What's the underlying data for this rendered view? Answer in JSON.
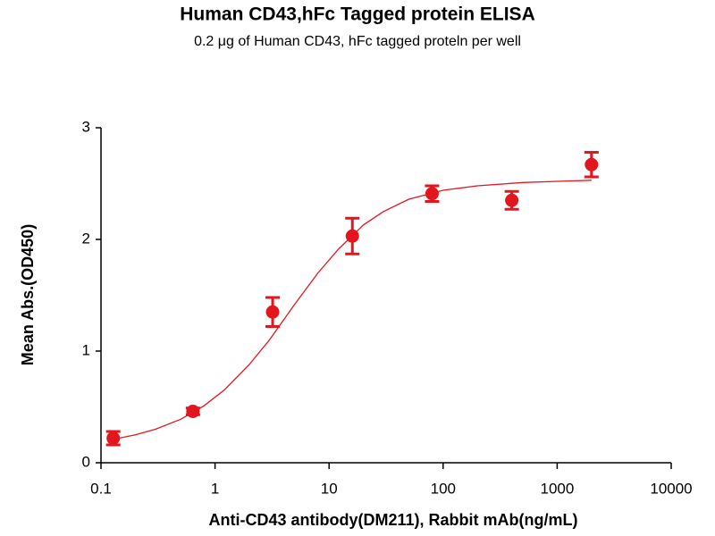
{
  "chart_data": {
    "type": "scatter",
    "title": "Human CD43,hFc Tagged protein ELISA",
    "subtitle": "0.2 μg of Human CD43, hFc tagged proteln per well",
    "x_label": "Anti-CD43 antibody(DM211), Rabbit mAb(ng/mL)",
    "y_label": "Mean Abs.(OD450)",
    "x_scale": "log",
    "xlim": [
      0.1,
      10000
    ],
    "xticks": [
      0.1,
      1,
      10,
      100,
      1000,
      10000
    ],
    "ylim": [
      0,
      3
    ],
    "yticks": [
      0,
      1,
      2,
      3
    ],
    "color": "#e3161e",
    "series": [
      {
        "x": [
          0.128,
          0.64,
          3.2,
          16,
          80,
          400,
          2000
        ],
        "values": [
          0.22,
          0.46,
          1.35,
          2.03,
          2.41,
          2.35,
          2.67
        ],
        "errors": [
          0.06,
          0.03,
          0.13,
          0.16,
          0.07,
          0.08,
          0.11
        ]
      }
    ],
    "fit": {
      "x": [
        0.128,
        0.2,
        0.3,
        0.5,
        0.8,
        1.2,
        2,
        3,
        5,
        8,
        12,
        20,
        30,
        50,
        100,
        200,
        500,
        1000,
        2000
      ],
      "values": [
        0.21,
        0.25,
        0.3,
        0.39,
        0.51,
        0.65,
        0.88,
        1.1,
        1.42,
        1.7,
        1.91,
        2.13,
        2.25,
        2.36,
        2.44,
        2.48,
        2.51,
        2.52,
        2.53
      ]
    }
  }
}
